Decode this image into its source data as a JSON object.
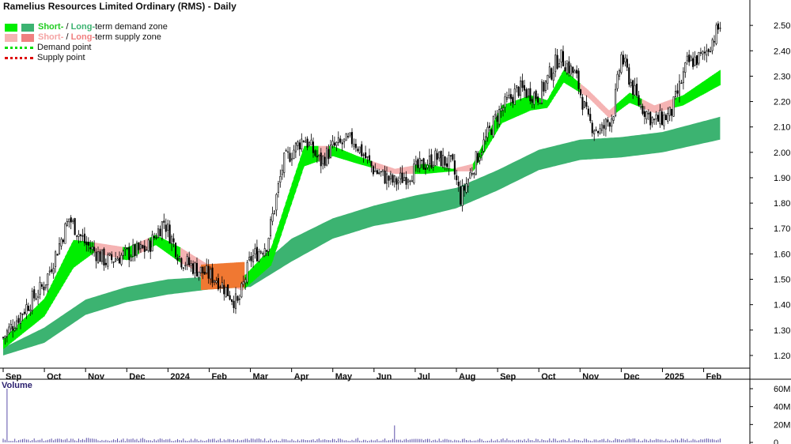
{
  "title": "Ramelius Resources Limited Ordinary (RMS) - Daily",
  "legend": {
    "demand_zone": {
      "short": "Short-",
      "sep": " / ",
      "long": "Long-",
      "rest": "term demand zone"
    },
    "supply_zone": {
      "short": "Short-",
      "sep": " / ",
      "long": "Long-",
      "rest": "term supply zone"
    },
    "demand_point": "Demand point",
    "supply_point": "Supply point"
  },
  "volume_label": "Volume",
  "colors": {
    "short_demand": "#00ee00",
    "long_demand": "#3cb371",
    "short_supply": "#f5b3b3",
    "long_supply": "#f07f7f",
    "overlap": "#f07832",
    "volume_bar": "#5a4ea8",
    "candle_up": "#ffffff",
    "candle_down": "#000000",
    "text_green": "#22cc22",
    "text_red": "#f08080"
  },
  "chart_data": {
    "type": "candlestick",
    "title": "Ramelius Resources Limited Ordinary (RMS) - Daily",
    "y_axis": {
      "side": "right",
      "min": 1.15,
      "max": 2.6,
      "ticks": [
        "2.50",
        "2.40",
        "2.30",
        "2.20",
        "2.10",
        "2.00",
        "1.90",
        "1.80",
        "1.70",
        "1.60",
        "1.50",
        "1.40",
        "1.30",
        "1.20"
      ]
    },
    "x_axis": {
      "labels": [
        {
          "label": "Sep",
          "month": 0
        },
        {
          "label": "Oct",
          "month": 1
        },
        {
          "label": "Nov",
          "month": 2
        },
        {
          "label": "Dec",
          "month": 3
        },
        {
          "label": "2024",
          "month": 4
        },
        {
          "label": "Feb",
          "month": 5
        },
        {
          "label": "Mar",
          "month": 6
        },
        {
          "label": "Apr",
          "month": 7
        },
        {
          "label": "May",
          "month": 8
        },
        {
          "label": "Jun",
          "month": 9
        },
        {
          "label": "Jul",
          "month": 10
        },
        {
          "label": "Aug",
          "month": 11
        },
        {
          "label": "Sep",
          "month": 12
        },
        {
          "label": "Oct",
          "month": 13
        },
        {
          "label": "Nov",
          "month": 14
        },
        {
          "label": "Dec",
          "month": 15
        },
        {
          "label": "2025",
          "month": 16
        },
        {
          "label": "Feb",
          "month": 17
        }
      ],
      "months_span": 17.85
    },
    "price_path_month_close": [
      [
        0,
        1.27
      ],
      [
        0.5,
        1.38
      ],
      [
        1,
        1.48
      ],
      [
        1.6,
        1.74
      ],
      [
        2,
        1.64
      ],
      [
        2.5,
        1.57
      ],
      [
        3,
        1.6
      ],
      [
        3.5,
        1.62
      ],
      [
        3.9,
        1.73
      ],
      [
        4.3,
        1.58
      ],
      [
        4.7,
        1.54
      ],
      [
        5.2,
        1.5
      ],
      [
        5.7,
        1.4
      ],
      [
        6,
        1.58
      ],
      [
        6.4,
        1.64
      ],
      [
        6.8,
        1.96
      ],
      [
        7.3,
        2.06
      ],
      [
        7.7,
        1.96
      ],
      [
        8,
        2.02
      ],
      [
        8.5,
        2.05
      ],
      [
        9,
        1.93
      ],
      [
        9.5,
        1.88
      ],
      [
        10,
        1.93
      ],
      [
        10.5,
        1.98
      ],
      [
        10.9,
        1.95
      ],
      [
        11.1,
        1.82
      ],
      [
        11.5,
        1.98
      ],
      [
        12,
        2.15
      ],
      [
        12.5,
        2.25
      ],
      [
        13,
        2.22
      ],
      [
        13.5,
        2.38
      ],
      [
        13.9,
        2.3
      ],
      [
        14.2,
        2.12
      ],
      [
        14.5,
        2.08
      ],
      [
        14.8,
        2.15
      ],
      [
        15,
        2.38
      ],
      [
        15.4,
        2.2
      ],
      [
        15.8,
        2.12
      ],
      [
        16.2,
        2.15
      ],
      [
        16.6,
        2.35
      ],
      [
        17,
        2.38
      ],
      [
        17.4,
        2.5
      ]
    ],
    "short_zone": [
      [
        0,
        1.23,
        1.26
      ],
      [
        1,
        1.36,
        1.42
      ],
      [
        1.7,
        1.55,
        1.65
      ],
      [
        2.2,
        1.61,
        1.64
      ],
      [
        3,
        1.58,
        1.62
      ],
      [
        3.7,
        1.64,
        1.67
      ],
      [
        4.3,
        1.57,
        1.62
      ],
      [
        5,
        1.51,
        1.55
      ],
      [
        5.8,
        1.46,
        1.5
      ],
      [
        6.5,
        1.56,
        1.62
      ],
      [
        7.3,
        1.95,
        2.02
      ],
      [
        8,
        1.99,
        2.02
      ],
      [
        8.6,
        1.96,
        1.98
      ],
      [
        9.5,
        1.92,
        1.93
      ],
      [
        10.2,
        1.92,
        1.95
      ],
      [
        10.9,
        1.93,
        1.93
      ],
      [
        11.4,
        1.93,
        1.95
      ],
      [
        12.1,
        2.12,
        2.18
      ],
      [
        12.8,
        2.17,
        2.22
      ],
      [
        13.2,
        2.18,
        2.2
      ],
      [
        13.6,
        2.28,
        2.32
      ],
      [
        14.2,
        2.22,
        2.24
      ],
      [
        14.7,
        2.14,
        2.16
      ],
      [
        15.2,
        2.2,
        2.23
      ],
      [
        15.8,
        2.16,
        2.18
      ],
      [
        16.5,
        2.19,
        2.22
      ],
      [
        17.4,
        2.27,
        2.32
      ]
    ],
    "long_zone": [
      [
        0,
        1.2,
        1.23
      ],
      [
        1,
        1.25,
        1.31
      ],
      [
        2,
        1.36,
        1.42
      ],
      [
        3,
        1.41,
        1.47
      ],
      [
        4,
        1.44,
        1.5
      ],
      [
        5,
        1.46,
        1.51
      ],
      [
        6,
        1.47,
        1.52
      ],
      [
        7,
        1.57,
        1.66
      ],
      [
        8,
        1.66,
        1.74
      ],
      [
        9,
        1.71,
        1.79
      ],
      [
        10,
        1.74,
        1.83
      ],
      [
        11,
        1.78,
        1.86
      ],
      [
        12,
        1.85,
        1.93
      ],
      [
        13,
        1.93,
        2.01
      ],
      [
        14,
        1.97,
        2.05
      ],
      [
        15,
        1.98,
        2.06
      ],
      [
        16,
        2.0,
        2.08
      ],
      [
        17.4,
        2.05,
        2.14
      ]
    ],
    "volume_axis": {
      "min": 0,
      "max": 60000000,
      "ticks": [
        "60M",
        "40M",
        "20M",
        "0"
      ]
    },
    "volume_spikes": [
      {
        "month": 0.1,
        "value": 60000000
      },
      {
        "month": 2.05,
        "value": 5000000
      },
      {
        "month": 3.4,
        "value": 5000000
      },
      {
        "month": 6.35,
        "value": 4500000
      },
      {
        "month": 8.6,
        "value": 5000000
      },
      {
        "month": 9.5,
        "value": 19000000
      },
      {
        "month": 15.3,
        "value": 4500000
      }
    ],
    "volume_base": 3000000
  }
}
